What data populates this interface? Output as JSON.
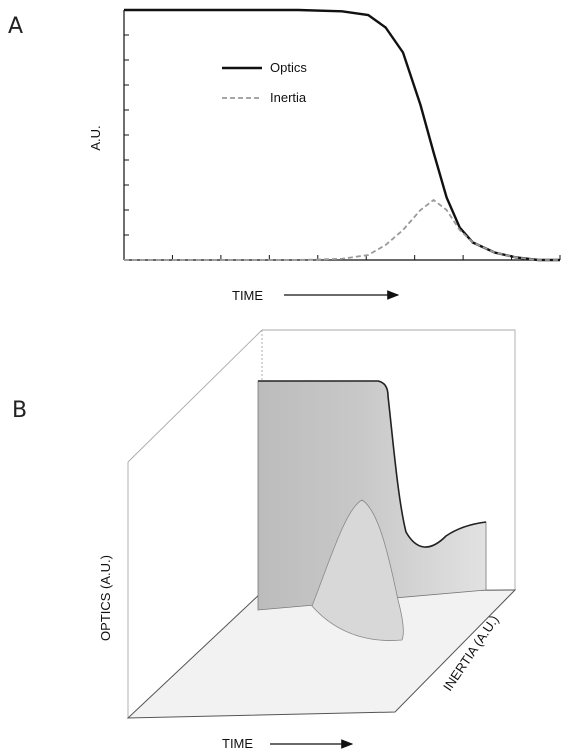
{
  "panels": {
    "a": "A",
    "b": "B"
  },
  "chart_data": [
    {
      "type": "line",
      "panel": "A",
      "xlabel": "TIME",
      "ylabel": "A.U.",
      "xlim": [
        0,
        10
      ],
      "ylim": [
        0,
        1
      ],
      "legend": "center",
      "series": [
        {
          "name": "Optics",
          "color": "#111111",
          "style": "solid",
          "x": [
            0,
            4,
            5,
            5.6,
            6.0,
            6.4,
            6.8,
            7.1,
            7.4,
            7.7,
            8.0,
            8.5,
            9.0,
            9.5,
            10
          ],
          "y": [
            1.0,
            1.0,
            0.995,
            0.98,
            0.93,
            0.83,
            0.62,
            0.43,
            0.25,
            0.13,
            0.07,
            0.03,
            0.01,
            0.0,
            0.0
          ]
        },
        {
          "name": "Inertia",
          "color": "#999999",
          "style": "dashed",
          "x": [
            0,
            4,
            5,
            5.6,
            6.0,
            6.4,
            6.8,
            7.1,
            7.4,
            7.7,
            8.0,
            8.5,
            9.0,
            9.5,
            10
          ],
          "y": [
            0.0,
            0.0,
            0.005,
            0.02,
            0.06,
            0.12,
            0.2,
            0.24,
            0.2,
            0.12,
            0.07,
            0.03,
            0.01,
            0.0,
            0.0
          ]
        }
      ]
    },
    {
      "type": "surface-3d",
      "panel": "B",
      "xlabel": "TIME",
      "ylabel": "OPTICS (A.U.)",
      "zlabel": "INERTIA (A.U.)",
      "shape": "plateau of optics dropping over time while inertia rises then falls"
    }
  ]
}
